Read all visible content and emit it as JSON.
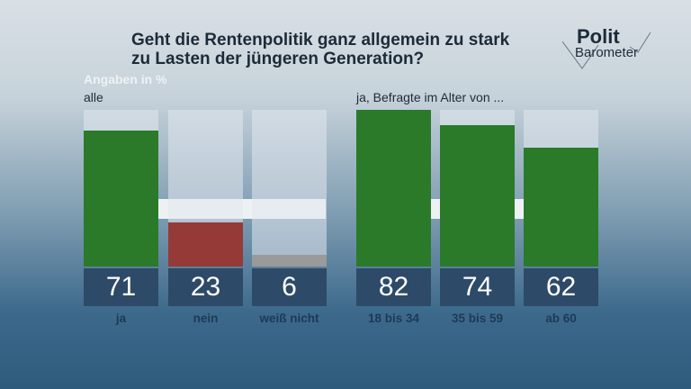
{
  "title_line1": "Geht die Rentenpolitik ganz allgemein zu stark",
  "title_line2": "zu Lasten der jüngeren Generation?",
  "logo": {
    "top": "Polit",
    "bottom": "Barometer"
  },
  "unit_label": "Angaben in %",
  "chart_data": [
    {
      "type": "bar",
      "subtitle": "alle",
      "categories": [
        "ja",
        "nein",
        "weiß nicht"
      ],
      "values": [
        71,
        23,
        6
      ],
      "colors": [
        "#2a7a2a",
        "#963a38",
        "#9a9a9a"
      ],
      "ylim": [
        0,
        82
      ]
    },
    {
      "type": "bar",
      "subtitle": "ja, Befragte im Alter von ...",
      "categories": [
        "18 bis 34",
        "35 bis 59",
        "ab 60"
      ],
      "values": [
        82,
        74,
        62
      ],
      "colors": [
        "#2a7a2a",
        "#2a7a2a",
        "#2a7a2a"
      ],
      "ylim": [
        0,
        82
      ]
    }
  ]
}
